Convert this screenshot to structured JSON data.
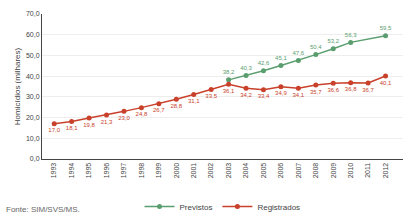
{
  "chart_data": {
    "type": "line",
    "y_label": "Homicídios (milhares)",
    "annotations": [
      "Fonte: SIM/SVS/MS."
    ],
    "series": [
      {
        "name": "Previstos",
        "color": "#5a9e6f",
        "marker": "circle",
        "x": [
          2003,
          2004,
          2005,
          2006,
          2007,
          2008,
          2009,
          2010,
          2012
        ],
        "values": [
          38.2,
          40.3,
          42.6,
          45.1,
          47.6,
          50.4,
          53.2,
          56.3,
          59.5
        ],
        "value_labels": [
          "38,2",
          "40,3",
          "42,6",
          "45,1",
          "47,6",
          "50,4",
          "53,2",
          "56,3",
          "59,5"
        ]
      },
      {
        "name": "Registrados",
        "color": "#c9412b",
        "marker": "circle",
        "x": [
          1993,
          1994,
          1995,
          1996,
          1997,
          1998,
          1999,
          2000,
          2001,
          2002,
          2003,
          2004,
          2005,
          2006,
          2007,
          2008,
          2009,
          2010,
          2011,
          2012
        ],
        "values": [
          17.0,
          18.1,
          19.8,
          21.3,
          23.0,
          24.8,
          26.7,
          28.8,
          31.1,
          33.5,
          36.1,
          34.2,
          33.4,
          34.9,
          34.1,
          35.7,
          36.6,
          36.8,
          36.7,
          40.1
        ],
        "value_labels": [
          "17,0",
          "18,1",
          "19,8",
          "21,3",
          "23,0",
          "24,8",
          "26,7",
          "28,8",
          "31,1",
          "33,5",
          "36,1",
          "34,2",
          "33,4",
          "34,9",
          "34,1",
          "35,7",
          "36,6",
          "36,8",
          "36,7",
          "40,1"
        ]
      }
    ],
    "xlim": [
      1992.3,
      2013.0
    ],
    "xticks": [
      1993,
      1994,
      1995,
      1996,
      1997,
      1998,
      1999,
      2000,
      2001,
      2002,
      2003,
      2004,
      2005,
      2006,
      2007,
      2008,
      2009,
      2010,
      2011,
      2012
    ],
    "ylim": [
      0,
      70
    ],
    "yticks": [
      {
        "value": 0.0,
        "label": "0,0"
      },
      {
        "value": 10.0,
        "label": "10,0"
      },
      {
        "value": 20.0,
        "label": "20,0"
      },
      {
        "value": 30.0,
        "label": "30,0"
      },
      {
        "value": 40.0,
        "label": "40,0"
      },
      {
        "value": 50.0,
        "label": "50,0"
      },
      {
        "value": 60.0,
        "label": "60,0"
      },
      {
        "value": 70.0,
        "label": "70,0"
      }
    ],
    "grid": "y",
    "legend": "bottom",
    "data_labels": true
  }
}
